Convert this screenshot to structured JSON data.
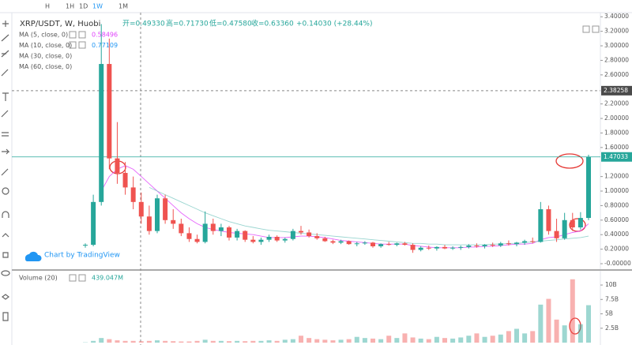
{
  "chart_data": [
    {
      "type": "candlestick",
      "toolbar": [
        "H",
        "1H",
        "1D",
        "1W",
        "1M"
      ],
      "title": "XRP/USDT, W, Huobi",
      "ohlc_labels": [
        "开=0.49330",
        "高=0.71730",
        "低=0.47580",
        "收=0.63360"
      ],
      "change": "+0.14030 (+28.44%)",
      "watermark": "Chart by TradingView",
      "up_color": "#26a69a",
      "down_color": "#ef5350",
      "open": [
        0.25,
        0.26,
        0.85,
        2.75,
        1.45,
        1.25,
        1.05,
        0.85,
        0.65,
        0.45,
        0.9,
        0.6,
        0.55,
        0.42,
        0.34,
        0.3,
        0.55,
        0.45,
        0.5,
        0.36,
        0.45,
        0.33,
        0.3,
        0.33,
        0.37,
        0.32,
        0.34,
        0.45,
        0.43,
        0.38,
        0.35,
        0.31,
        0.29,
        0.31,
        0.27,
        0.28,
        0.29,
        0.24,
        0.27,
        0.26,
        0.28,
        0.26,
        0.19,
        0.22,
        0.21,
        0.23,
        0.21,
        0.22,
        0.23,
        0.25,
        0.24,
        0.26,
        0.25,
        0.28,
        0.27,
        0.29,
        0.31,
        0.3,
        0.75,
        0.45,
        0.35,
        0.6,
        0.5,
        0.63
      ],
      "high": [
        0.28,
        0.95,
        3.3,
        3.1,
        1.95,
        1.4,
        1.2,
        0.98,
        0.8,
        0.95,
        0.95,
        0.75,
        0.62,
        0.5,
        0.4,
        0.72,
        0.62,
        0.55,
        0.52,
        0.48,
        0.46,
        0.38,
        0.36,
        0.4,
        0.39,
        0.36,
        0.48,
        0.52,
        0.47,
        0.42,
        0.37,
        0.33,
        0.33,
        0.32,
        0.3,
        0.31,
        0.3,
        0.28,
        0.3,
        0.29,
        0.3,
        0.28,
        0.24,
        0.25,
        0.24,
        0.26,
        0.24,
        0.25,
        0.27,
        0.28,
        0.27,
        0.29,
        0.3,
        0.32,
        0.3,
        0.33,
        0.36,
        0.85,
        0.8,
        0.62,
        0.7,
        0.7,
        0.71,
        1.5
      ],
      "low": [
        0.22,
        0.24,
        0.8,
        1.3,
        1.1,
        0.95,
        0.75,
        0.55,
        0.4,
        0.42,
        0.55,
        0.48,
        0.38,
        0.3,
        0.28,
        0.28,
        0.4,
        0.38,
        0.32,
        0.32,
        0.3,
        0.28,
        0.26,
        0.3,
        0.3,
        0.29,
        0.32,
        0.4,
        0.36,
        0.33,
        0.3,
        0.27,
        0.27,
        0.26,
        0.24,
        0.26,
        0.22,
        0.22,
        0.25,
        0.24,
        0.25,
        0.15,
        0.17,
        0.19,
        0.18,
        0.2,
        0.19,
        0.19,
        0.21,
        0.22,
        0.21,
        0.23,
        0.23,
        0.25,
        0.24,
        0.26,
        0.28,
        0.29,
        0.4,
        0.3,
        0.33,
        0.45,
        0.47,
        0.6
      ],
      "close": [
        0.26,
        0.85,
        2.75,
        1.45,
        1.25,
        1.05,
        0.85,
        0.65,
        0.45,
        0.9,
        0.6,
        0.55,
        0.42,
        0.34,
        0.3,
        0.55,
        0.45,
        0.5,
        0.36,
        0.45,
        0.33,
        0.3,
        0.33,
        0.37,
        0.32,
        0.34,
        0.45,
        0.43,
        0.38,
        0.35,
        0.31,
        0.29,
        0.31,
        0.27,
        0.28,
        0.29,
        0.24,
        0.27,
        0.26,
        0.28,
        0.26,
        0.19,
        0.22,
        0.21,
        0.23,
        0.21,
        0.22,
        0.23,
        0.25,
        0.24,
        0.26,
        0.25,
        0.28,
        0.27,
        0.29,
        0.31,
        0.3,
        0.75,
        0.45,
        0.35,
        0.6,
        0.5,
        0.63,
        1.47
      ],
      "ma": [
        {
          "name": "MA (5, close, 0)",
          "value": 0.58496,
          "color": "#e040fb",
          "values": [
            null,
            null,
            1.0,
            1.2,
            1.3,
            1.35,
            1.3,
            1.2,
            1.1,
            1.0,
            0.9,
            0.8,
            0.7,
            0.62,
            0.55,
            0.5,
            0.47,
            0.45,
            0.43,
            0.42,
            0.41,
            0.4,
            0.38,
            0.36,
            0.36,
            0.36,
            0.37,
            0.38,
            0.38,
            0.37,
            0.36,
            0.34,
            0.32,
            0.31,
            0.3,
            0.29,
            0.28,
            0.27,
            0.27,
            0.27,
            0.27,
            0.25,
            0.24,
            0.23,
            0.22,
            0.22,
            0.22,
            0.22,
            0.23,
            0.23,
            0.24,
            0.24,
            0.25,
            0.26,
            0.27,
            0.27,
            0.28,
            0.33,
            0.36,
            0.37,
            0.4,
            0.43,
            0.45,
            0.55
          ]
        },
        {
          "name": "MA (10, close, 0)",
          "value": 0.77109,
          "color": "#2196f3"
        },
        {
          "name": "MA (30, close, 0)",
          "color": "#80cbc4",
          "values": [
            null,
            null,
            null,
            null,
            null,
            null,
            null,
            null,
            1.05,
            1.0,
            0.95,
            0.9,
            0.85,
            0.8,
            0.75,
            0.7,
            0.66,
            0.62,
            0.58,
            0.55,
            0.52,
            0.5,
            0.48,
            0.46,
            0.45,
            0.44,
            0.43,
            0.42,
            0.41,
            0.4,
            0.39,
            0.38,
            0.37,
            0.36,
            0.35,
            0.34,
            0.33,
            0.32,
            0.31,
            0.3,
            0.29,
            0.28,
            0.28,
            0.27,
            0.27,
            0.26,
            0.26,
            0.26,
            0.26,
            0.26,
            0.26,
            0.27,
            0.27,
            0.28,
            0.28,
            0.29,
            0.3,
            0.31,
            0.32,
            0.33,
            0.34,
            0.35,
            0.36,
            0.38
          ]
        },
        {
          "name": "MA (60, close, 0)",
          "color": "#ff9800"
        }
      ],
      "ylim": [
        -0.065,
        3.457
      ],
      "yticks": [
        {
          "value": 3.4,
          "label": "3.40000"
        },
        {
          "value": 3.2,
          "label": "3.20000"
        },
        {
          "value": 3.0,
          "label": "3.00000"
        },
        {
          "value": 2.8,
          "label": "2.80000"
        },
        {
          "value": 2.6,
          "label": "2.60000"
        },
        {
          "value": 2.2,
          "label": "2.20000"
        },
        {
          "value": 2.0,
          "label": "2.00000"
        },
        {
          "value": 1.8,
          "label": "1.80000"
        },
        {
          "value": 1.6,
          "label": "1.60000"
        },
        {
          "value": 1.2,
          "label": "1.20000"
        },
        {
          "value": 1.0,
          "label": "1.00000"
        },
        {
          "value": 0.8,
          "label": "0.80000"
        },
        {
          "value": 0.6,
          "label": "0.60000"
        },
        {
          "value": 0.4,
          "label": "0.40000"
        },
        {
          "value": 0.2,
          "label": "0.20000"
        },
        {
          "value": 0,
          "label": "-0.00000"
        }
      ],
      "crosshair_price": 2.38258,
      "last_price": 1.47033
    },
    {
      "type": "bar",
      "title": "Volume (20)",
      "value_text": "439.047M",
      "values": [
        0.05,
        0.3,
        0.8,
        0.6,
        0.4,
        0.3,
        0.3,
        0.25,
        0.3,
        0.4,
        0.3,
        0.25,
        0.2,
        0.2,
        0.3,
        0.5,
        0.3,
        0.3,
        0.25,
        0.3,
        0.25,
        0.3,
        0.3,
        0.4,
        0.3,
        0.5,
        0.6,
        1.2,
        0.8,
        0.6,
        0.5,
        0.4,
        0.5,
        0.6,
        1.0,
        0.8,
        0.7,
        0.6,
        1.2,
        0.8,
        1.6,
        0.9,
        0.7,
        0.6,
        1.0,
        0.8,
        0.7,
        0.9,
        1.2,
        1.6,
        1.0,
        1.2,
        1.4,
        2.0,
        2.4,
        1.6,
        2.0,
        6.6,
        7.6,
        4.0,
        3.0,
        11.0,
        3.2,
        6.5
      ],
      "ylim": [
        0,
        12.2
      ],
      "yticks": [
        {
          "value": 2.5,
          "label": "2.5B"
        },
        {
          "value": 5,
          "label": "5B"
        },
        {
          "value": 7.5,
          "label": "7.5B"
        },
        {
          "value": 10,
          "label": "10B"
        }
      ]
    }
  ]
}
